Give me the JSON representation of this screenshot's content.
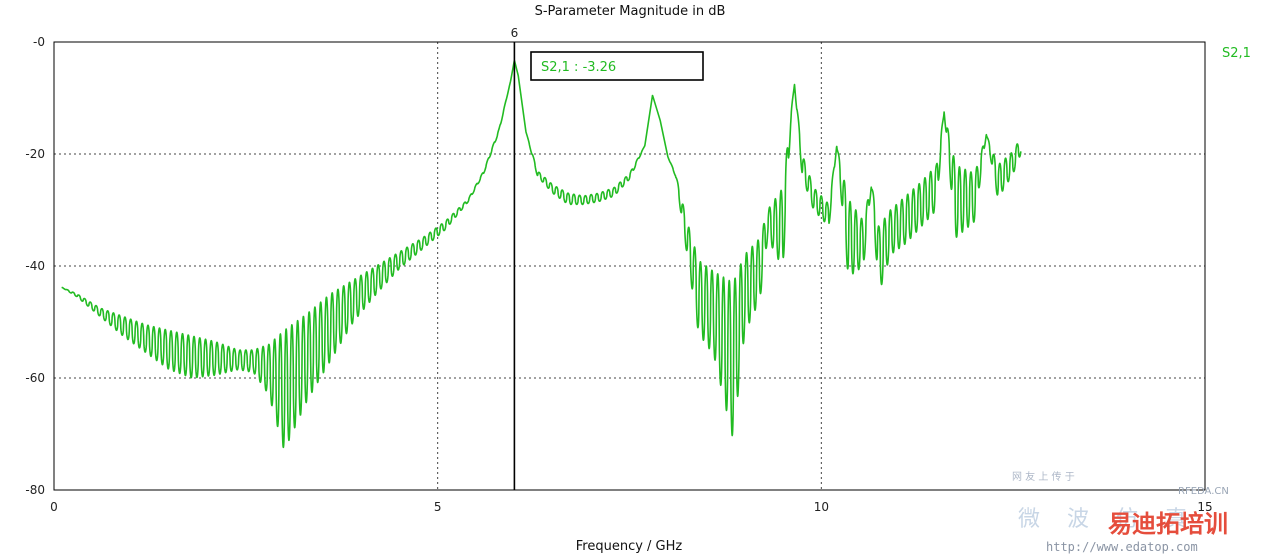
{
  "chart_data": {
    "type": "line",
    "title": "S-Parameter Magnitude in dB",
    "xlabel": "Frequency / GHz",
    "ylabel": "",
    "xlim": [
      0,
      15
    ],
    "ylim": [
      -80,
      0
    ],
    "x_ticks": [
      0,
      5,
      10,
      15
    ],
    "x_tick_labels": [
      "0",
      "5",
      "10",
      "15"
    ],
    "y_ticks": [
      0,
      -20,
      -40,
      -60,
      -80
    ],
    "y_tick_labels": [
      "-0",
      "-20",
      "-40",
      "-60",
      "-80"
    ],
    "grid": true,
    "legend": "top-right",
    "series": [
      {
        "name": "S2,1",
        "color": "#22bb22",
        "envelope": [
          [
            0.1,
            -43.8,
            -43.8
          ],
          [
            0.3,
            -45.0,
            -45.5
          ],
          [
            0.6,
            -47.5,
            -49.0
          ],
          [
            0.9,
            -49.0,
            -52.5
          ],
          [
            1.2,
            -50.5,
            -55.5
          ],
          [
            1.5,
            -51.5,
            -58.5
          ],
          [
            1.8,
            -52.5,
            -60.0
          ],
          [
            2.1,
            -53.5,
            -59.5
          ],
          [
            2.4,
            -55.0,
            -58.5
          ],
          [
            2.6,
            -55.0,
            -59.0
          ],
          [
            2.8,
            -54.0,
            -63.0
          ],
          [
            3.0,
            -51.5,
            -73.0
          ],
          [
            3.3,
            -48.5,
            -64.0
          ],
          [
            3.6,
            -45.0,
            -57.0
          ],
          [
            3.9,
            -42.5,
            -50.0
          ],
          [
            4.2,
            -40.0,
            -45.0
          ],
          [
            4.5,
            -37.5,
            -40.5
          ],
          [
            4.8,
            -35.0,
            -37.0
          ],
          [
            5.1,
            -32.0,
            -33.5
          ],
          [
            5.4,
            -28.0,
            -28.5
          ],
          [
            5.6,
            -23.0,
            -23.5
          ],
          [
            5.8,
            -15.5,
            -16.0
          ],
          [
            5.95,
            -7.0,
            -7.0
          ],
          [
            6.0,
            -3.26,
            -3.26
          ],
          [
            6.05,
            -6.0,
            -6.0
          ],
          [
            6.15,
            -16.0,
            -16.0
          ],
          [
            6.3,
            -23.0,
            -24.0
          ],
          [
            6.5,
            -25.5,
            -27.0
          ],
          [
            6.7,
            -27.0,
            -29.0
          ],
          [
            6.9,
            -27.5,
            -29.0
          ],
          [
            7.1,
            -27.0,
            -28.5
          ],
          [
            7.3,
            -26.0,
            -27.5
          ],
          [
            7.5,
            -23.5,
            -24.5
          ],
          [
            7.7,
            -18.5,
            -18.5
          ],
          [
            7.8,
            -9.5,
            -9.5
          ],
          [
            7.9,
            -14.0,
            -14.0
          ],
          [
            8.0,
            -20.5,
            -20.5
          ],
          [
            8.1,
            -23.5,
            -24.0
          ],
          [
            8.25,
            -32.0,
            -38.0
          ],
          [
            8.4,
            -39.0,
            -52.0
          ],
          [
            8.6,
            -41.0,
            -56.0
          ],
          [
            8.85,
            -43.0,
            -71.0
          ],
          [
            9.0,
            -38.0,
            -52.0
          ],
          [
            9.2,
            -35.0,
            -46.0
          ],
          [
            9.3,
            -30.0,
            -35.0
          ],
          [
            9.5,
            -26.0,
            -40.5
          ],
          [
            9.6,
            -13.0,
            -15.0
          ],
          [
            9.65,
            -7.5,
            -7.5
          ],
          [
            9.75,
            -20.0,
            -24.0
          ],
          [
            9.9,
            -26.0,
            -30.0
          ],
          [
            10.1,
            -29.0,
            -33.0
          ],
          [
            10.2,
            -18.5,
            -18.5
          ],
          [
            10.35,
            -28.0,
            -42.0
          ],
          [
            10.55,
            -32.0,
            -40.0
          ],
          [
            10.65,
            -25.0,
            -26.0
          ],
          [
            10.75,
            -33.0,
            -45.0
          ],
          [
            10.9,
            -30.0,
            -38.0
          ],
          [
            11.1,
            -27.5,
            -36.0
          ],
          [
            11.3,
            -25.0,
            -33.0
          ],
          [
            11.5,
            -22.0,
            -30.0
          ],
          [
            11.6,
            -12.5,
            -12.5
          ],
          [
            11.75,
            -22.0,
            -35.0
          ],
          [
            12.0,
            -23.5,
            -32.0
          ],
          [
            12.15,
            -16.5,
            -16.5
          ],
          [
            12.3,
            -22.0,
            -28.0
          ],
          [
            12.5,
            -19.5,
            -23.5
          ],
          [
            12.6,
            -17.0,
            -20.0
          ]
        ]
      }
    ],
    "marker": {
      "x": 6,
      "x_label": "6",
      "readout": "S2,1 : -3.26"
    }
  },
  "watermark": {
    "line1": "网 友 上 传 于",
    "site_tag": "RFEDA.CN",
    "brand_cn": "微 波 仿 真",
    "brand_red": "易迪拓培训",
    "url": "http://www.edatop.com"
  }
}
